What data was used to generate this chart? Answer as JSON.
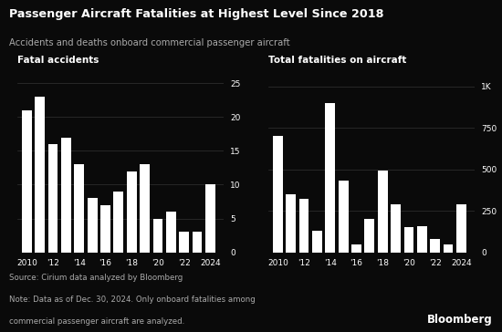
{
  "title": "Passenger Aircraft Fatalities at Highest Level Since 2018",
  "subtitle": "Accidents and deaths onboard commercial passenger aircraft",
  "years": [
    2010,
    2011,
    2012,
    2013,
    2014,
    2015,
    2016,
    2017,
    2018,
    2019,
    2020,
    2021,
    2022,
    2023,
    2024
  ],
  "fatal_accidents": [
    21,
    23,
    16,
    17,
    13,
    8,
    7,
    9,
    12,
    13,
    5,
    6,
    3,
    3,
    10
  ],
  "total_fatalities": [
    700,
    350,
    320,
    130,
    900,
    430,
    50,
    200,
    490,
    290,
    150,
    160,
    80,
    50,
    290
  ],
  "left_label": "Fatal accidents",
  "right_label": "Total fatalities on aircraft",
  "source_line1": "Source: Cirium data analyzed by Bloomberg",
  "source_line2": "Note: Data as of Dec. 30, 2024. Only onboard fatalities among",
  "source_line3": "commercial passenger aircraft are analyzed.",
  "bloomberg_text": "Bloomberg",
  "bar_color": "#ffffff",
  "bg_color": "#0a0a0a",
  "text_color": "#ffffff",
  "subtle_text": "#aaaaaa",
  "tick_labels": [
    "2010",
    "'12",
    "'14",
    "'16",
    "'18",
    "'20",
    "'22",
    "2024"
  ],
  "tick_positions": [
    2010,
    2012,
    2014,
    2016,
    2018,
    2020,
    2022,
    2024
  ],
  "left_yticks": [
    0,
    5,
    10,
    15,
    20,
    25
  ],
  "right_ytick_labels": [
    "0",
    "250",
    "500",
    "750",
    "1K"
  ],
  "right_ytick_vals": [
    0,
    250,
    500,
    750,
    1000
  ],
  "left_ylim": [
    0,
    27
  ],
  "right_ylim": [
    0,
    1100
  ]
}
